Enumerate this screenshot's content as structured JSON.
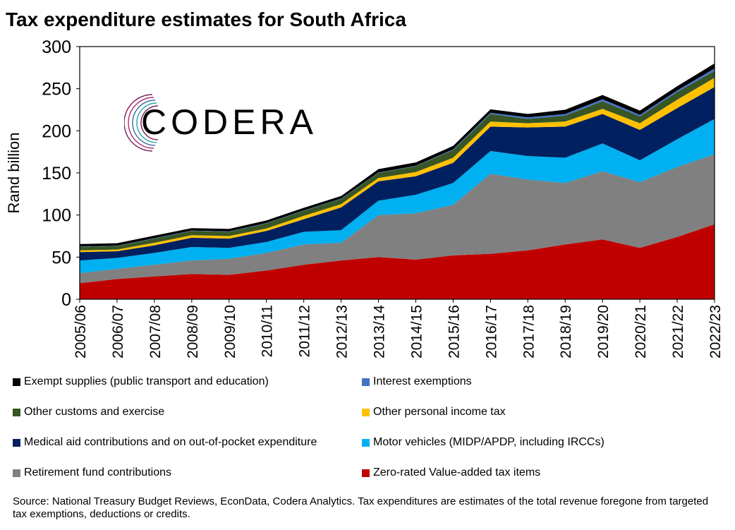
{
  "title": "Tax expenditure estimates for South Africa",
  "logo_text": "CODERA",
  "source": "Source: National Treasury Budget Reviews, EconData, Codera Analytics. Tax expenditures are estimates of the total revenue foregone from targeted tax exemptions, deductions or credits.",
  "chart_data": {
    "type": "area",
    "stacked": true,
    "title": "Tax expenditure estimates for South Africa",
    "ylabel": "Rand billion",
    "xlabel": "",
    "ylim": [
      0,
      300
    ],
    "yticks": [
      0,
      50,
      100,
      150,
      200,
      250,
      300
    ],
    "categories": [
      "2005/06",
      "2006/07",
      "2007/08",
      "2008/09",
      "2009/10",
      "2010/11",
      "2011/12",
      "2012/13",
      "2013/14",
      "2014/15",
      "2015/16",
      "2016/17",
      "2017/18",
      "2018/19",
      "2019/20",
      "2020/21",
      "2021/22",
      "2022/23"
    ],
    "legend_position": "bottom",
    "series": [
      {
        "name": "Zero-rated Value-added tax items",
        "color": "#c00000",
        "values": [
          19,
          24,
          27,
          30,
          29,
          34,
          41,
          46,
          50,
          47,
          52,
          54,
          58,
          65,
          71,
          61,
          74,
          89
        ]
      },
      {
        "name": "Retirement fund contributions",
        "color": "#808080",
        "values": [
          12,
          12,
          14,
          16,
          19,
          21,
          24,
          21,
          50,
          55,
          60,
          95,
          84,
          73,
          81,
          78,
          83,
          83
        ]
      },
      {
        "name": "Motor vehicles (MIDP/APDP, including IRCCs)",
        "color": "#00b0f0",
        "values": [
          15,
          13,
          14,
          16,
          13,
          13,
          15,
          15,
          17,
          22,
          26,
          27,
          28,
          30,
          33,
          26,
          33,
          42
        ]
      },
      {
        "name": "Medical aid contributions and on out-of-pocket expenditure",
        "color": "#002060",
        "values": [
          10,
          8,
          9,
          11,
          11,
          13,
          15,
          27,
          23,
          22,
          24,
          29,
          34,
          37,
          35,
          36,
          37,
          38
        ]
      },
      {
        "name": "Other personal income tax",
        "color": "#ffc000",
        "values": [
          2,
          2,
          3,
          3,
          3,
          3,
          4,
          4,
          4,
          5,
          6,
          6,
          5,
          6,
          6,
          8,
          10,
          11
        ]
      },
      {
        "name": "Other customs and exercise",
        "color": "#375623",
        "values": [
          4,
          4,
          5,
          5,
          5,
          6,
          6,
          6,
          6,
          7,
          9,
          9,
          5,
          7,
          9,
          8,
          9,
          8
        ]
      },
      {
        "name": "Interest exemptions",
        "color": "#4472c4",
        "values": [
          0.5,
          0.5,
          0.5,
          0.5,
          0.5,
          0.5,
          0.5,
          0.5,
          0.5,
          0.5,
          1,
          1.5,
          2,
          2,
          2.5,
          2,
          2,
          3
        ]
      },
      {
        "name": "Exempt supplies (public transport and education)",
        "color": "#000000",
        "values": [
          3,
          3,
          3,
          3,
          3,
          3,
          3,
          3,
          4,
          4,
          4,
          4,
          4,
          5,
          5,
          5,
          5,
          6
        ]
      }
    ]
  },
  "legend_order": [
    7,
    6,
    5,
    4,
    3,
    2,
    1,
    0
  ]
}
